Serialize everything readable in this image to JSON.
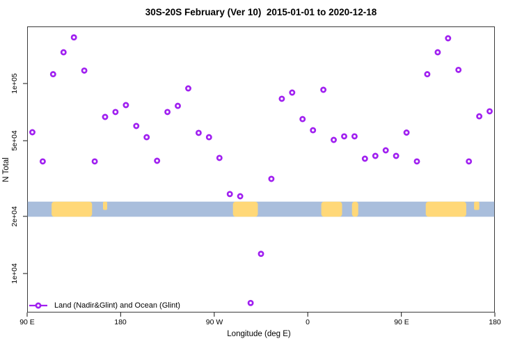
{
  "title": "30S-20S February (Ver 10)  2015-01-01 to 2020-12-18",
  "legend": {
    "label": "Land (Nadir&Glint) and Ocean (Glint)"
  },
  "colors": {
    "marker": "#A020F0",
    "land": "#FFD878",
    "ocean": "#A9BEDC",
    "axis": "#3A3A3A"
  },
  "chart_data": {
    "type": "scatter",
    "title": "30S-20S February (Ver 10)  2015-01-01 to 2020-12-18",
    "xlabel": "Longitude (deg E)",
    "ylabel": "N Total",
    "x_range_deg": [
      90,
      540
    ],
    "y_scale": "log",
    "ylim": [
      6000,
      200000
    ],
    "grid": false,
    "legend_position": "bottom-left",
    "x_ticks": [
      {
        "deg": 90,
        "label": "90 E"
      },
      {
        "deg": 180,
        "label": "180"
      },
      {
        "deg": 270,
        "label": "90 W"
      },
      {
        "deg": 360,
        "label": "0"
      },
      {
        "deg": 450,
        "label": "90 E"
      },
      {
        "deg": 540,
        "label": "180"
      }
    ],
    "y_ticks": [
      {
        "value": 10000,
        "label": "1e+04"
      },
      {
        "value": 20000,
        "label": "2e+04"
      },
      {
        "value": 50000,
        "label": "5e+04"
      },
      {
        "value": 100000,
        "label": "1e+05"
      }
    ],
    "points": [
      {
        "lon_deg_axis": 95,
        "n_total": 55400
      },
      {
        "lon_deg_axis": 105,
        "n_total": 38900
      },
      {
        "lon_deg_axis": 115,
        "n_total": 112000
      },
      {
        "lon_deg_axis": 125,
        "n_total": 146000
      },
      {
        "lon_deg_axis": 135,
        "n_total": 175000
      },
      {
        "lon_deg_axis": 145,
        "n_total": 117000
      },
      {
        "lon_deg_axis": 155,
        "n_total": 38900
      },
      {
        "lon_deg_axis": 165,
        "n_total": 66700
      },
      {
        "lon_deg_axis": 175,
        "n_total": 70800
      },
      {
        "lon_deg_axis": 185,
        "n_total": 77000
      },
      {
        "lon_deg_axis": 195,
        "n_total": 59800
      },
      {
        "lon_deg_axis": 205,
        "n_total": 52200
      },
      {
        "lon_deg_axis": 215,
        "n_total": 39200
      },
      {
        "lon_deg_axis": 225,
        "n_total": 70800
      },
      {
        "lon_deg_axis": 235,
        "n_total": 76300
      },
      {
        "lon_deg_axis": 245,
        "n_total": 94300
      },
      {
        "lon_deg_axis": 255,
        "n_total": 55000
      },
      {
        "lon_deg_axis": 265,
        "n_total": 52200
      },
      {
        "lon_deg_axis": 275,
        "n_total": 40600
      },
      {
        "lon_deg_axis": 285,
        "n_total": 26200
      },
      {
        "lon_deg_axis": 295,
        "n_total": 25500
      },
      {
        "lon_deg_axis": 305,
        "n_total": 7000
      },
      {
        "lon_deg_axis": 315,
        "n_total": 12700
      },
      {
        "lon_deg_axis": 325,
        "n_total": 31500
      },
      {
        "lon_deg_axis": 335,
        "n_total": 83100
      },
      {
        "lon_deg_axis": 345,
        "n_total": 89600
      },
      {
        "lon_deg_axis": 355,
        "n_total": 65000
      },
      {
        "lon_deg_axis": 365,
        "n_total": 56800
      },
      {
        "lon_deg_axis": 375,
        "n_total": 92700
      },
      {
        "lon_deg_axis": 385,
        "n_total": 50500
      },
      {
        "lon_deg_axis": 395,
        "n_total": 52700
      },
      {
        "lon_deg_axis": 405,
        "n_total": 52700
      },
      {
        "lon_deg_axis": 415,
        "n_total": 40200
      },
      {
        "lon_deg_axis": 425,
        "n_total": 41600
      },
      {
        "lon_deg_axis": 435,
        "n_total": 44500
      },
      {
        "lon_deg_axis": 445,
        "n_total": 41600
      },
      {
        "lon_deg_axis": 455,
        "n_total": 55200
      },
      {
        "lon_deg_axis": 465,
        "n_total": 38900
      },
      {
        "lon_deg_axis": 475,
        "n_total": 112000
      },
      {
        "lon_deg_axis": 485,
        "n_total": 146000
      },
      {
        "lon_deg_axis": 495,
        "n_total": 173000
      },
      {
        "lon_deg_axis": 505,
        "n_total": 118000
      },
      {
        "lon_deg_axis": 515,
        "n_total": 38900
      },
      {
        "lon_deg_axis": 525,
        "n_total": 67200
      },
      {
        "lon_deg_axis": 535,
        "n_total": 71400
      }
    ],
    "map_band": {
      "description": "world-map strip for 30S-20S latitude drawn across the plot",
      "value_top": 23900,
      "value_bottom": 19900,
      "ocean_color": "#A9BEDC",
      "land_color": "#FFD878",
      "land_segments_deg": [
        {
          "from": 113.5,
          "to": 152.5,
          "name": "australia",
          "small": false
        },
        {
          "from": 163,
          "to": 167,
          "name": "new-caledonia",
          "small": true
        },
        {
          "from": 288,
          "to": 312,
          "name": "south-america",
          "small": false
        },
        {
          "from": 373,
          "to": 393,
          "name": "southern-africa",
          "small": false
        },
        {
          "from": 402.5,
          "to": 408.5,
          "name": "madagascar",
          "small": false
        },
        {
          "from": 473.5,
          "to": 512.5,
          "name": "australia-repeat",
          "small": false
        },
        {
          "from": 520,
          "to": 525,
          "name": "new-caledonia-repeat",
          "small": true
        }
      ]
    }
  }
}
